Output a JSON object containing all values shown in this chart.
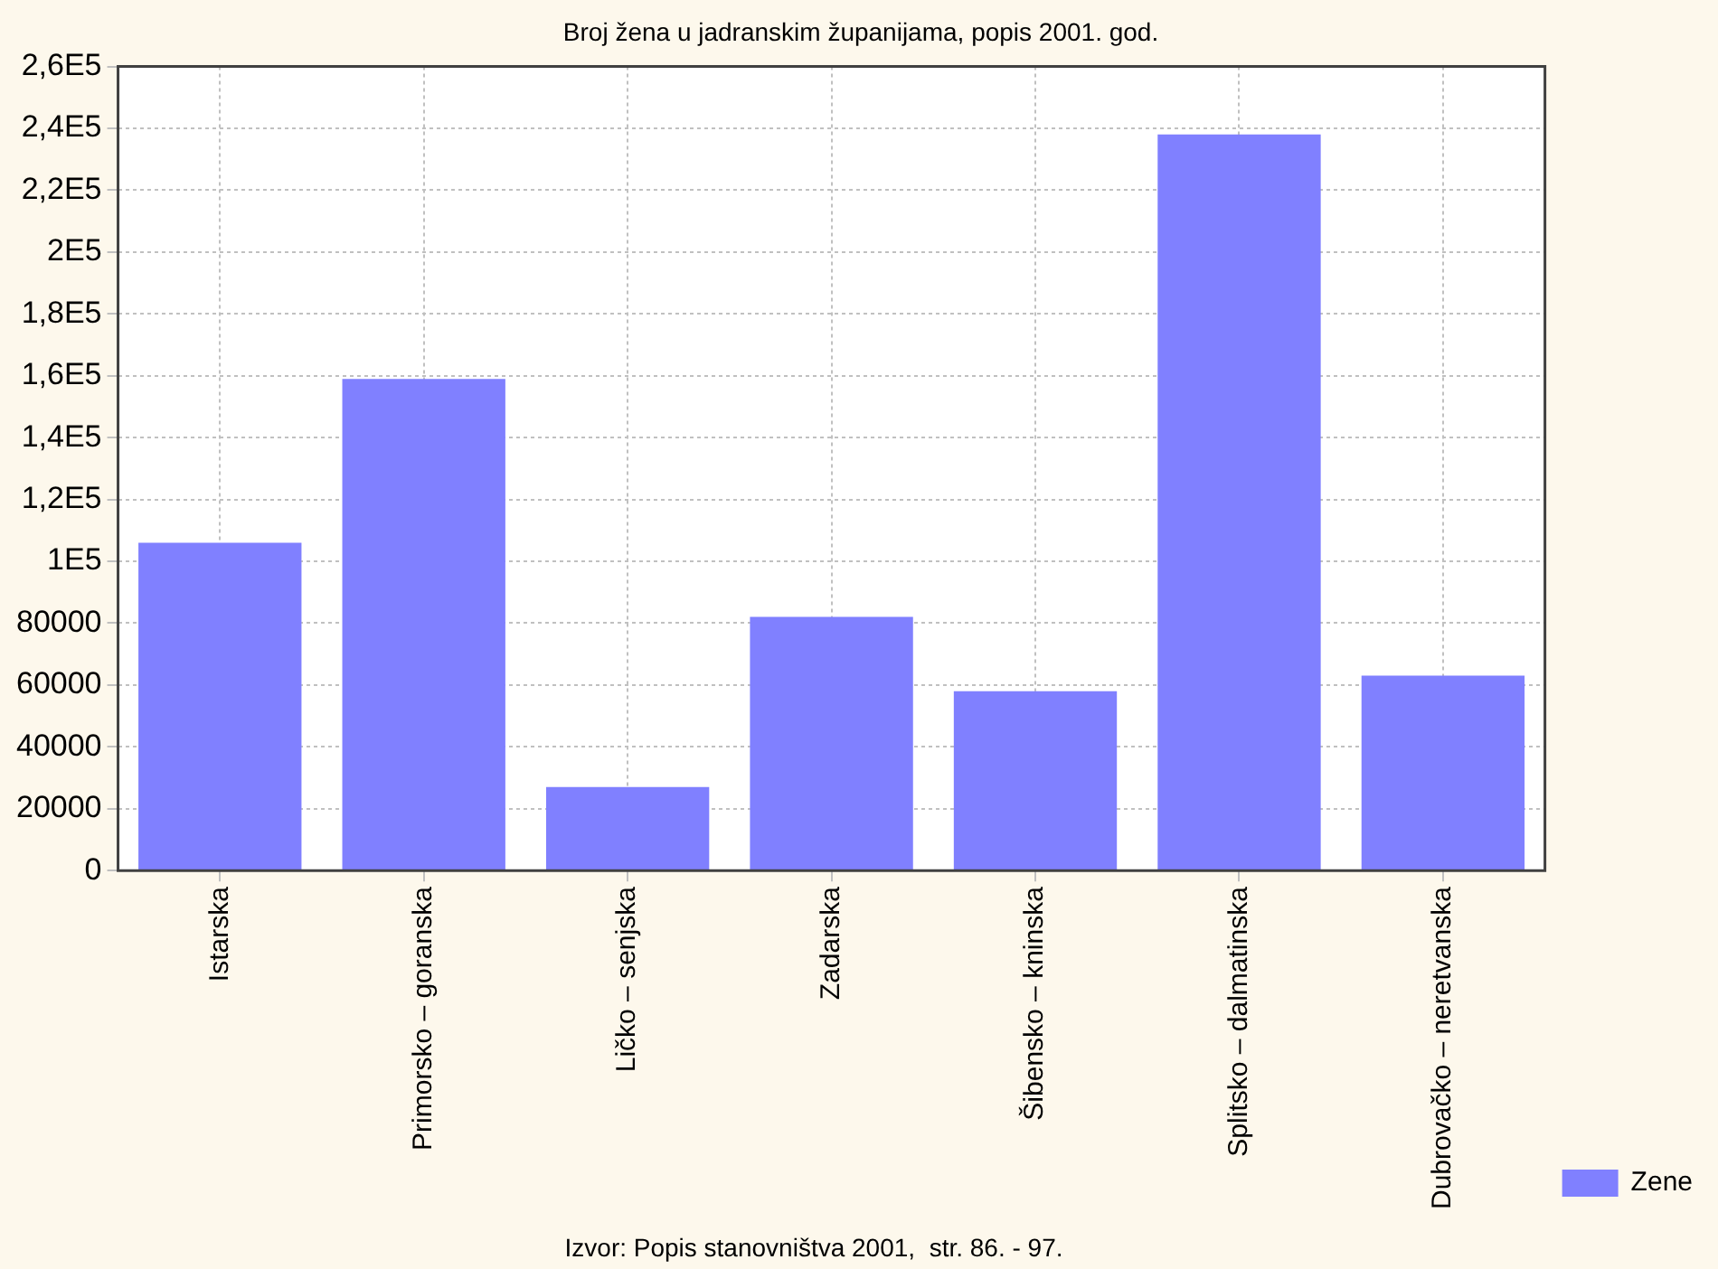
{
  "chart_data": {
    "type": "bar",
    "title": "Broj žena u jadranskim županijama, popis 2001. god.",
    "categories": [
      "Istarska",
      "Primorsko – goranska",
      "Ličko – senjska",
      "Zadarska",
      "Šibensko – kninska",
      "Splitsko – dalmatinska",
      "Dubrovačko – neretvanska"
    ],
    "series": [
      {
        "name": "Zene",
        "color": "#8080ff",
        "values": [
          106000,
          159000,
          27000,
          82000,
          58000,
          238000,
          63000
        ]
      }
    ],
    "ylim": [
      0,
      260000
    ],
    "yticks": [
      0,
      20000,
      40000,
      60000,
      80000,
      {
        "value": 100000,
        "label": "1E5"
      },
      {
        "value": 120000,
        "label": "1,2E5"
      },
      {
        "value": 140000,
        "label": "1,4E5"
      },
      {
        "value": 160000,
        "label": "1,6E5"
      },
      {
        "value": 180000,
        "label": "1,8E5"
      },
      {
        "value": 200000,
        "label": "2E5"
      },
      {
        "value": 220000,
        "label": "2,2E5"
      },
      {
        "value": 240000,
        "label": "2,4E5"
      },
      {
        "value": 260000,
        "label": "2,6E5"
      }
    ],
    "grid": true,
    "legend": "bottom right",
    "annotations": [
      "Izvor: Popis stanovništva 2001,  str. 86. - 97."
    ]
  }
}
